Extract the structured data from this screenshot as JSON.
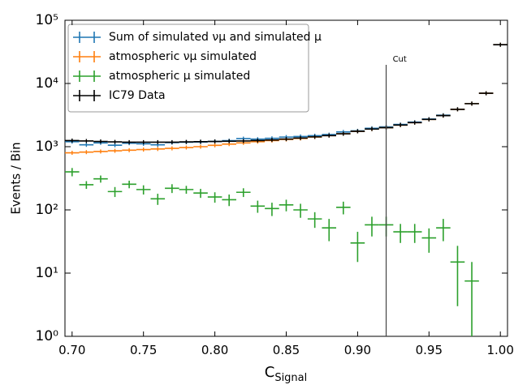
{
  "chart_data": {
    "type": "errorbar",
    "xlabel": "C",
    "xlabel_subscript": "Signal",
    "ylabel": "Events / Bin",
    "log_y": true,
    "xlim": [
      0.695,
      1.005
    ],
    "ylim": [
      1,
      100000
    ],
    "xticks": [
      {
        "value": 0.7,
        "label": "0.70"
      },
      0.75,
      {
        "value": 0.8,
        "label": "0.80"
      },
      0.85,
      {
        "value": 0.9,
        "label": "0.90"
      },
      0.95,
      {
        "value": 1.0,
        "label": "1.00"
      }
    ],
    "yticks": [
      {
        "value": 1,
        "label": "10⁰"
      },
      {
        "value": 10,
        "label": "10¹"
      },
      {
        "value": 100,
        "label": "10²"
      },
      {
        "value": 1000,
        "label": "10³"
      },
      {
        "value": 10000,
        "label": "10⁴"
      },
      {
        "value": 100000,
        "label": "10⁵"
      }
    ],
    "legend": "upper left",
    "cut": {
      "label": "Cut",
      "x": 0.92
    },
    "x": [
      0.7,
      0.71,
      0.72,
      0.73,
      0.74,
      0.75,
      0.76,
      0.77,
      0.78,
      0.79,
      0.8,
      0.81,
      0.82,
      0.83,
      0.84,
      0.85,
      0.86,
      0.87,
      0.88,
      0.89,
      0.9,
      0.91,
      0.92,
      0.93,
      0.94,
      0.95,
      0.96,
      0.97,
      0.98,
      0.99,
      1.0
    ],
    "series": [
      {
        "name": "Sum of simulated νμ and simulated μ",
        "color": "#1f77b4",
        "values": [
          1200,
          1070,
          1150,
          1055,
          1135,
          1110,
          1070,
          1160,
          1180,
          1185,
          1210,
          1245,
          1340,
          1315,
          1355,
          1420,
          1450,
          1492,
          1552,
          1710,
          1780,
          1958,
          2058,
          2245,
          2445,
          2736,
          3152,
          3915,
          4807.5,
          7000,
          41000
        ]
      },
      {
        "name": "atmospheric νμ simulated",
        "color": "#ff7f0e",
        "values": [
          800,
          820,
          840,
          860,
          880,
          900,
          920,
          940,
          970,
          1000,
          1050,
          1100,
          1150,
          1200,
          1250,
          1300,
          1350,
          1420,
          1500,
          1600,
          1750,
          1900,
          2000,
          2200,
          2400,
          2700,
          3100,
          3900,
          4800,
          7000,
          41000
        ]
      },
      {
        "name": "atmospheric μ simulated",
        "color": "#2ca02c",
        "values": [
          400,
          250,
          310,
          195,
          255,
          210,
          150,
          220,
          210,
          185,
          160,
          145,
          190,
          115,
          105,
          120,
          100,
          72,
          52,
          110,
          30,
          58,
          58,
          45,
          45,
          36,
          52,
          15,
          7.5,
          null,
          null
        ],
        "errors": [
          60,
          35,
          40,
          35,
          35,
          35,
          30,
          35,
          30,
          30,
          30,
          30,
          30,
          25,
          25,
          25,
          25,
          20,
          20,
          25,
          15,
          20,
          20,
          15,
          15,
          15,
          20,
          12,
          7.5,
          null,
          null
        ]
      },
      {
        "name": "IC79 Data",
        "color": "#000000",
        "values": [
          1250,
          1230,
          1210,
          1190,
          1180,
          1180,
          1180,
          1180,
          1190,
          1200,
          1210,
          1220,
          1230,
          1250,
          1280,
          1320,
          1370,
          1430,
          1500,
          1600,
          1750,
          1900,
          2000,
          2200,
          2400,
          2700,
          3100,
          3900,
          4800,
          7000,
          41000
        ]
      }
    ]
  }
}
